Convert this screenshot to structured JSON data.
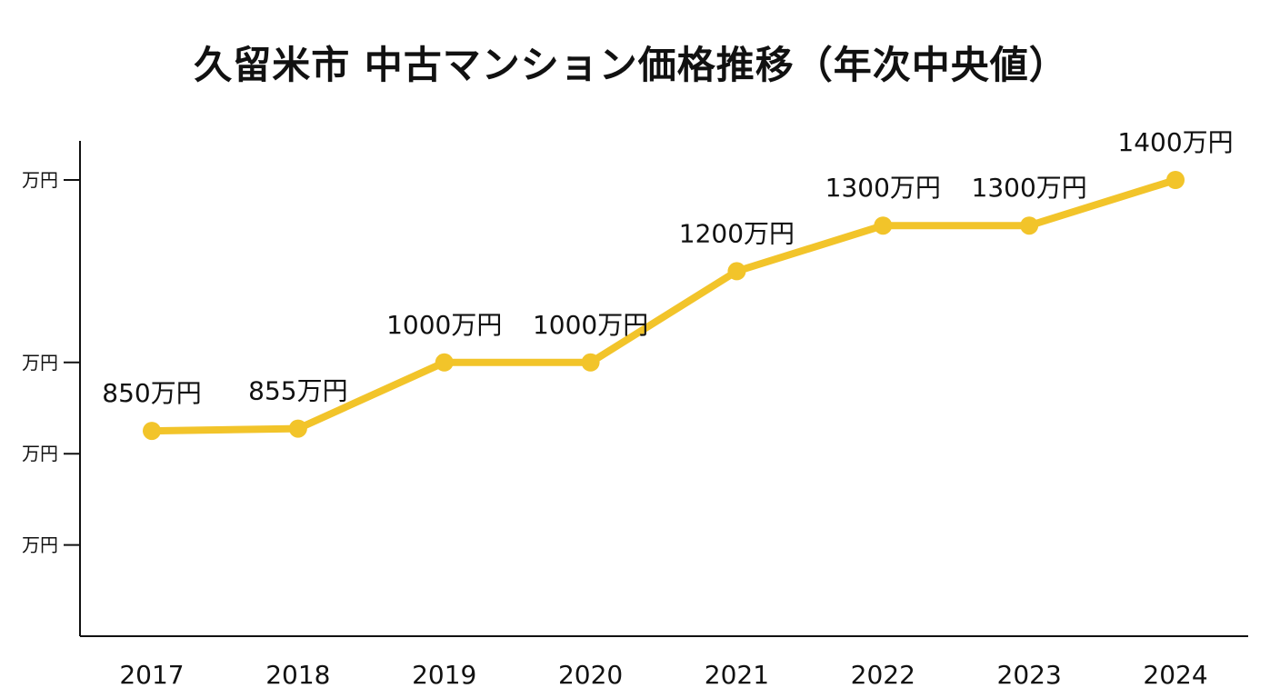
{
  "chart_data": {
    "type": "line",
    "title": "久留米市 中古マンション価格推移（年次中央値）",
    "categories": [
      "2017",
      "2018",
      "2019",
      "2020",
      "2021",
      "2022",
      "2023",
      "2024"
    ],
    "series": [
      {
        "values": [
          850,
          855,
          1000,
          1000,
          1200,
          1300,
          1300,
          1400
        ],
        "labels": [
          "850万円",
          "855万円",
          "1000万円",
          "1000万円",
          "1200万円",
          "1300万円",
          "1300万円",
          "1400万円"
        ],
        "color": "#F2C42A"
      }
    ],
    "y_ticks": [
      600,
      800,
      1000,
      1400
    ],
    "y_tick_labels": [
      "万円",
      "万円",
      "万円",
      "万円"
    ],
    "ylim": [
      400,
      1400
    ],
    "grid": false,
    "legend": "none"
  }
}
